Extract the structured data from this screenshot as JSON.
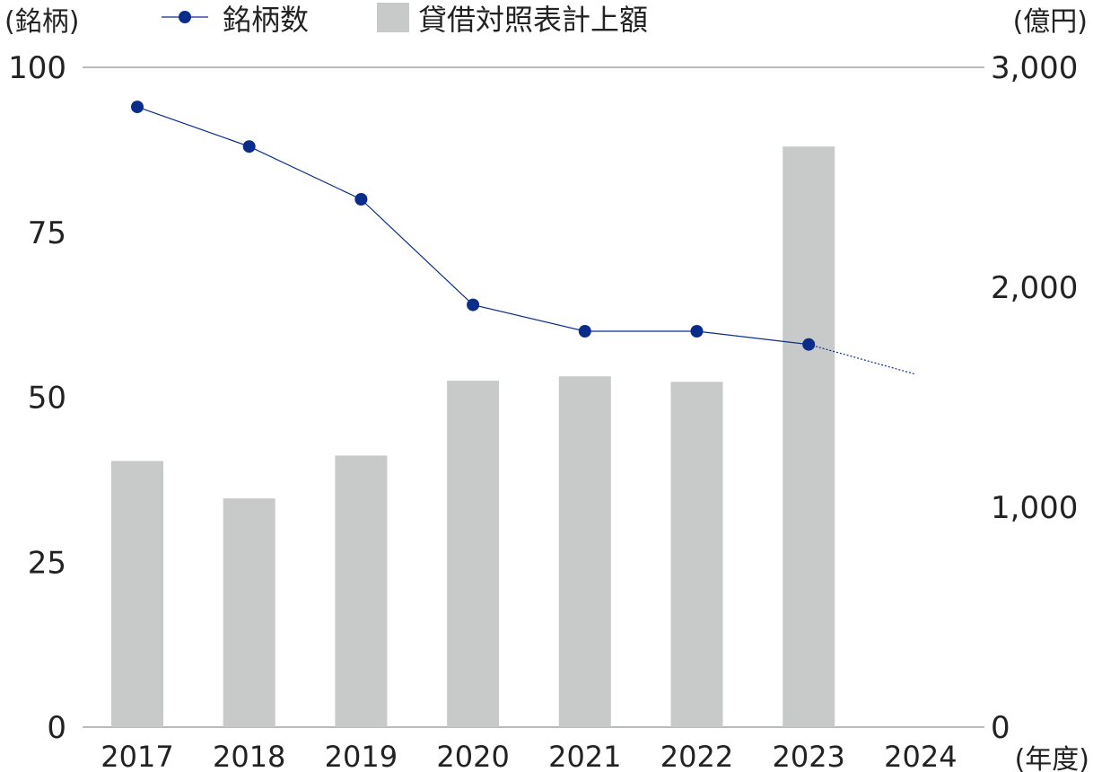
{
  "chart_data": {
    "type": "bar+line",
    "categories": [
      "2017",
      "2018",
      "2019",
      "2020",
      "2021",
      "2022",
      "2023",
      "2024"
    ],
    "x_unit": "(年度)",
    "left_axis": {
      "unit": "(銘柄)",
      "range": [
        0,
        100
      ],
      "ticks": [
        "0",
        "25",
        "50",
        "75",
        "100"
      ]
    },
    "right_axis": {
      "unit": "(億円)",
      "range": [
        0,
        3000
      ],
      "ticks": [
        "0",
        "1,000",
        "2,000",
        "3,000"
      ]
    },
    "series": [
      {
        "name": "銘柄数",
        "type": "line",
        "axis": "left",
        "values": [
          94,
          88,
          80,
          64,
          60,
          60,
          58,
          null
        ],
        "projection_to": 53.5,
        "color": "#0a2d8c"
      },
      {
        "name": "貸借対照表計上額",
        "type": "bar",
        "axis": "right",
        "values": [
          1210,
          1040,
          1235,
          1575,
          1595,
          1570,
          2640,
          null
        ],
        "color": "#c8c9c9"
      }
    ],
    "grid": "top line only"
  }
}
